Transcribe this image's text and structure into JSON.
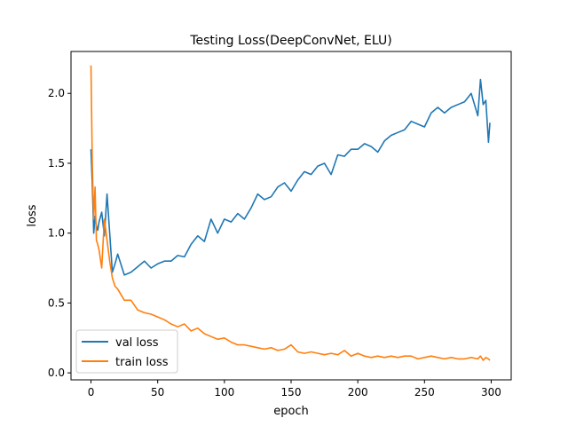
{
  "chart_data": {
    "type": "line",
    "title": "Testing Loss(DeepConvNet, ELU)",
    "xlabel": "epoch",
    "ylabel": "loss",
    "xlim": [
      -15,
      315
    ],
    "ylim": [
      -0.05,
      2.3
    ],
    "xticks": [
      0,
      50,
      100,
      150,
      200,
      250,
      300
    ],
    "yticks": [
      0.0,
      0.5,
      1.0,
      1.5,
      2.0
    ],
    "xtick_labels": [
      "0",
      "50",
      "100",
      "150",
      "200",
      "250",
      "300"
    ],
    "ytick_labels": [
      "0.0",
      "0.5",
      "1.0",
      "1.5",
      "2.0"
    ],
    "grid": false,
    "legend_position": "lower-left",
    "series": [
      {
        "name": "val loss",
        "color": "#1f77b4",
        "x": [
          0,
          1,
          2,
          3,
          4,
          5,
          6,
          8,
          10,
          12,
          14,
          16,
          18,
          20,
          25,
          30,
          35,
          40,
          45,
          50,
          55,
          60,
          65,
          70,
          75,
          80,
          85,
          90,
          95,
          100,
          105,
          110,
          115,
          120,
          125,
          130,
          135,
          140,
          145,
          150,
          155,
          160,
          165,
          170,
          175,
          180,
          185,
          190,
          195,
          200,
          205,
          210,
          215,
          220,
          225,
          230,
          235,
          240,
          245,
          250,
          255,
          260,
          265,
          270,
          275,
          280,
          285,
          290,
          292,
          294,
          296,
          298,
          299
        ],
        "values": [
          1.6,
          1.35,
          1.0,
          1.12,
          1.05,
          1.02,
          1.08,
          1.15,
          0.98,
          1.28,
          1.0,
          0.72,
          0.78,
          0.85,
          0.7,
          0.72,
          0.76,
          0.8,
          0.75,
          0.78,
          0.8,
          0.8,
          0.84,
          0.83,
          0.92,
          0.98,
          0.94,
          1.1,
          1.0,
          1.1,
          1.08,
          1.14,
          1.1,
          1.18,
          1.28,
          1.24,
          1.26,
          1.33,
          1.36,
          1.3,
          1.38,
          1.44,
          1.42,
          1.48,
          1.5,
          1.42,
          1.56,
          1.55,
          1.6,
          1.6,
          1.64,
          1.62,
          1.58,
          1.66,
          1.7,
          1.72,
          1.74,
          1.8,
          1.78,
          1.76,
          1.86,
          1.9,
          1.86,
          1.9,
          1.92,
          1.94,
          2.0,
          1.84,
          2.1,
          1.92,
          1.95,
          1.65,
          1.79
        ]
      },
      {
        "name": "train loss",
        "color": "#ff7f0e",
        "x": [
          0,
          1,
          2,
          3,
          4,
          5,
          6,
          8,
          10,
          12,
          14,
          16,
          18,
          20,
          25,
          30,
          35,
          40,
          45,
          50,
          55,
          60,
          65,
          70,
          75,
          80,
          85,
          90,
          95,
          100,
          105,
          110,
          115,
          120,
          125,
          130,
          135,
          140,
          145,
          150,
          155,
          160,
          165,
          170,
          175,
          180,
          185,
          190,
          195,
          200,
          205,
          210,
          215,
          220,
          225,
          230,
          235,
          240,
          245,
          250,
          255,
          260,
          265,
          270,
          275,
          280,
          285,
          290,
          292,
          294,
          296,
          298,
          299
        ],
        "values": [
          2.2,
          1.5,
          1.1,
          1.33,
          0.95,
          0.92,
          0.88,
          0.75,
          1.1,
          0.95,
          0.8,
          0.68,
          0.62,
          0.6,
          0.52,
          0.52,
          0.45,
          0.43,
          0.42,
          0.4,
          0.38,
          0.35,
          0.33,
          0.35,
          0.3,
          0.32,
          0.28,
          0.26,
          0.24,
          0.25,
          0.22,
          0.2,
          0.2,
          0.19,
          0.18,
          0.17,
          0.18,
          0.16,
          0.17,
          0.2,
          0.15,
          0.14,
          0.15,
          0.14,
          0.13,
          0.14,
          0.13,
          0.16,
          0.12,
          0.14,
          0.12,
          0.11,
          0.12,
          0.11,
          0.12,
          0.11,
          0.12,
          0.12,
          0.1,
          0.11,
          0.12,
          0.11,
          0.1,
          0.11,
          0.1,
          0.1,
          0.11,
          0.1,
          0.12,
          0.09,
          0.11,
          0.1,
          0.09
        ]
      }
    ]
  }
}
